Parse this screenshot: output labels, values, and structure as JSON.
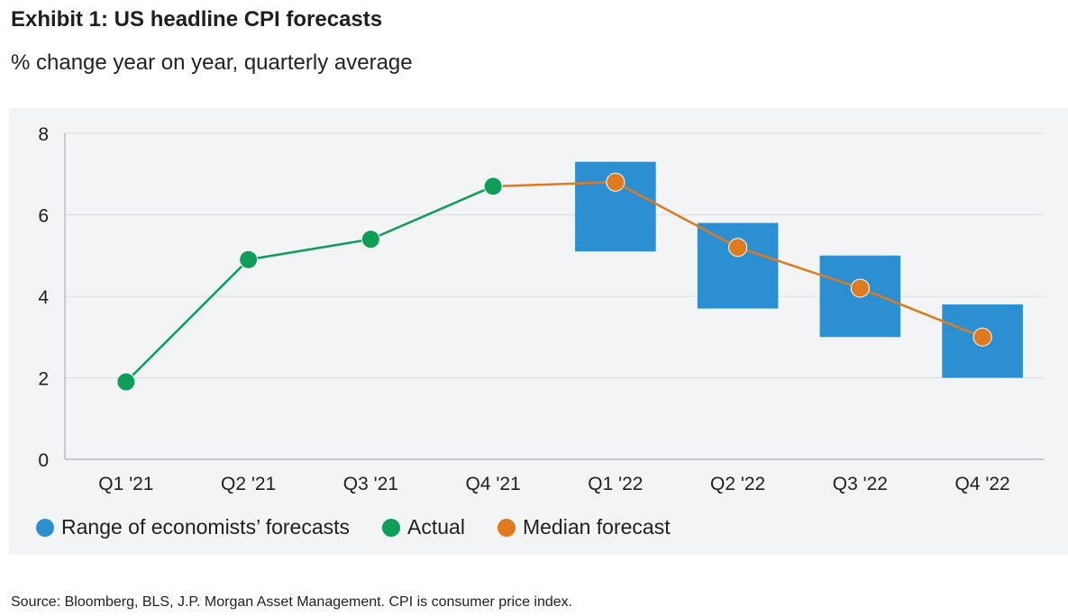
{
  "title": "Exhibit 1: US headline CPI forecasts",
  "subtitle": "% change year on year, quarterly average",
  "source": "Source: Bloomberg, BLS, J.P. Morgan Asset Management. CPI is consumer price index.",
  "colors": {
    "range": "#2b8fd2",
    "actual": "#0e9e57",
    "median": "#e07a1f",
    "grid": "#d9dde0",
    "panel": "#f2f4f5"
  },
  "legend": [
    {
      "label": "Range of economists’ forecasts",
      "color": "#2b8fd2"
    },
    {
      "label": "Actual",
      "color": "#0e9e57"
    },
    {
      "label": "Median forecast",
      "color": "#e07a1f"
    }
  ],
  "chart_data": {
    "type": "line",
    "title": "Exhibit 1: US headline CPI forecasts",
    "ylabel": "% change year on year, quarterly average",
    "xlabel": "",
    "categories": [
      "Q1 '21",
      "Q2 '21",
      "Q3 '21",
      "Q4 '21",
      "Q1 '22",
      "Q2 '22",
      "Q3 '22",
      "Q4 '22"
    ],
    "ylim": [
      0,
      8
    ],
    "yticks": [
      0,
      2,
      4,
      6,
      8
    ],
    "grid": true,
    "series": [
      {
        "name": "Actual",
        "type": "line",
        "values": [
          1.9,
          4.9,
          5.4,
          6.7,
          null,
          null,
          null,
          null
        ]
      },
      {
        "name": "Median forecast",
        "type": "line",
        "values": [
          null,
          null,
          null,
          6.7,
          6.8,
          5.2,
          4.2,
          3.0
        ]
      },
      {
        "name": "Range of economists’ forecasts",
        "type": "range",
        "low": [
          null,
          null,
          null,
          null,
          5.1,
          3.7,
          3.0,
          2.0
        ],
        "high": [
          null,
          null,
          null,
          null,
          7.3,
          5.8,
          5.0,
          3.8
        ]
      }
    ]
  }
}
